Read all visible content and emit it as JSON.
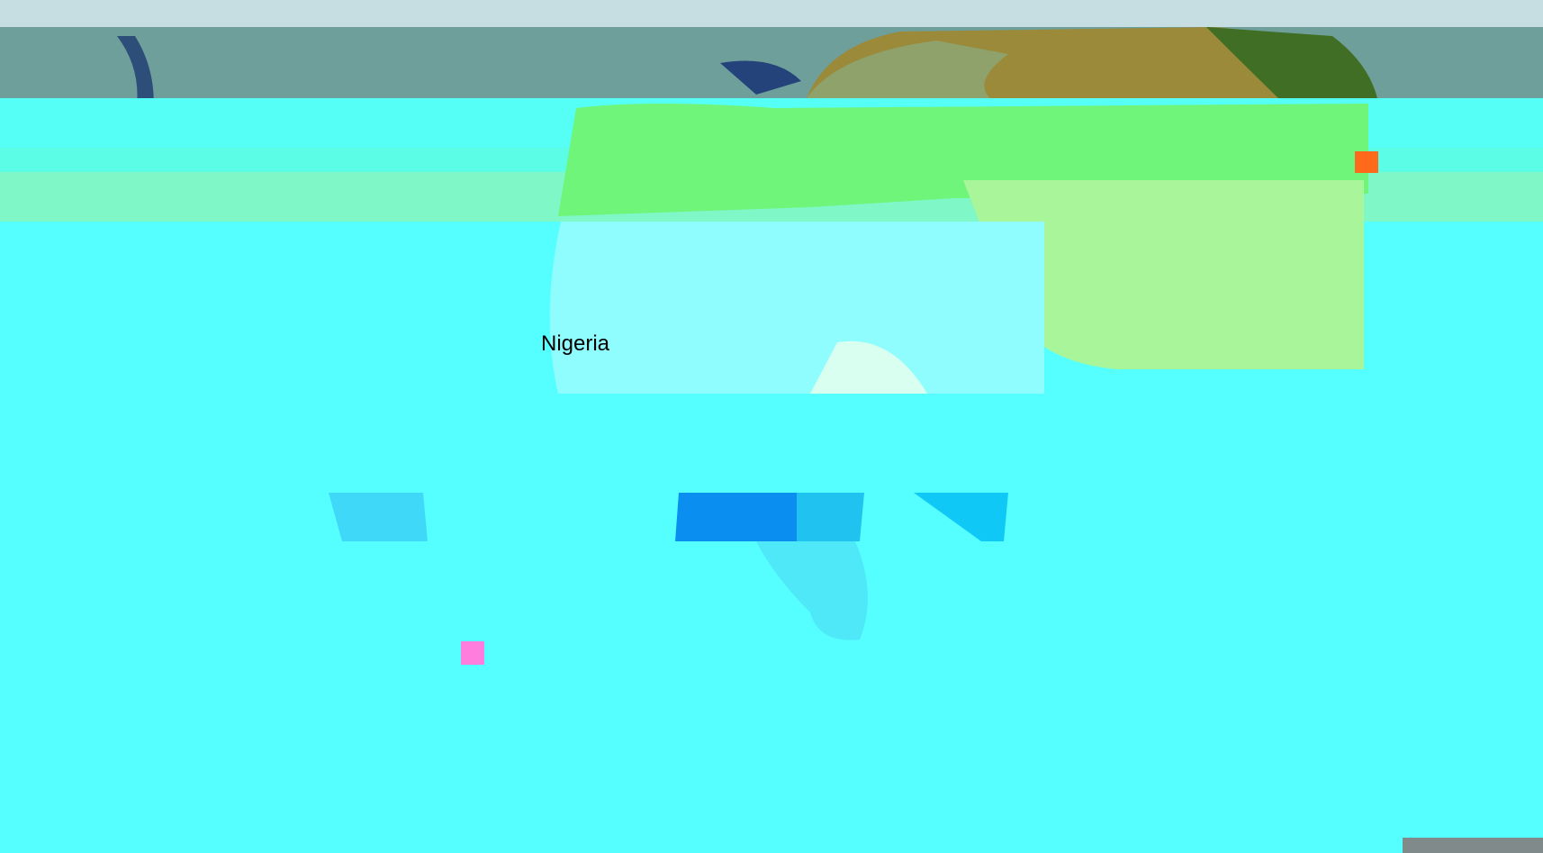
{
  "map": {
    "label": "Nigeria"
  }
}
